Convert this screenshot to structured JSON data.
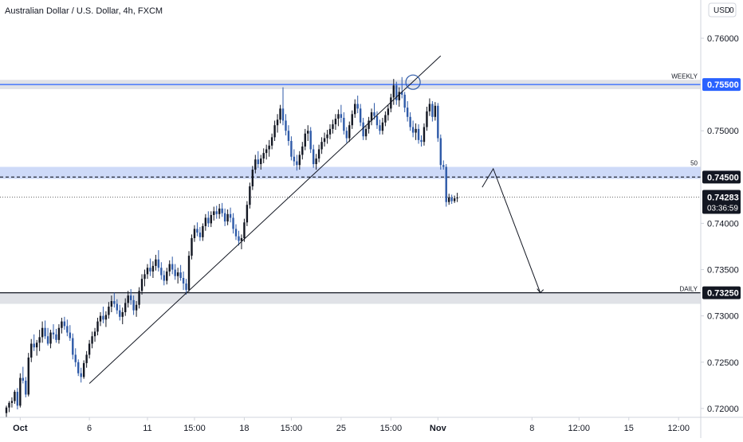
{
  "header": {
    "symbol_title": "Australian Dollar / U.S. Dollar, 4h, FXCM",
    "currency": "USD",
    "currency_suffix": "0"
  },
  "current_price": {
    "value": 0.74283,
    "label": "0.74283",
    "countdown": "03:36:59"
  },
  "colors": {
    "up_candle": "#131722",
    "down_candle": "#2e5aa8",
    "zone_fill": "#c5d4f7",
    "gray_zone_fill": "#dadde3",
    "blue_line": "#2962ff",
    "price_tag_blue": "#2962ff",
    "price_tag_black": "#131722",
    "axis_border": "#d1d4dc",
    "text": "#131722"
  },
  "chart_data": {
    "type": "candlestick",
    "title": "Australian Dollar / U.S. Dollar, 4h, FXCM",
    "ylim": [
      0.7193,
      0.7637
    ],
    "y_ticks": [
      {
        "value": 0.76,
        "label": "0.76000"
      },
      {
        "value": 0.75,
        "label": "0.75000"
      },
      {
        "value": 0.74,
        "label": "0.74000"
      },
      {
        "value": 0.735,
        "label": "0.73500"
      },
      {
        "value": 0.73,
        "label": "0.73000"
      },
      {
        "value": 0.725,
        "label": "0.72500"
      },
      {
        "value": 0.72,
        "label": "0.72000"
      }
    ],
    "x_ticks": [
      {
        "bar": 5,
        "label": "Oct",
        "bold": true
      },
      {
        "bar": 30,
        "label": "6",
        "bold": false
      },
      {
        "bar": 51,
        "label": "11",
        "bold": false
      },
      {
        "bar": 68,
        "label": "15:00",
        "bold": false
      },
      {
        "bar": 86,
        "label": "18",
        "bold": false
      },
      {
        "bar": 103,
        "label": "15:00",
        "bold": false
      },
      {
        "bar": 121,
        "label": "25",
        "bold": false
      },
      {
        "bar": 139,
        "label": "15:00",
        "bold": false
      },
      {
        "bar": 156,
        "label": "Nov",
        "bold": true
      },
      {
        "bar": 190,
        "label": "8",
        "bold": false
      },
      {
        "bar": 207,
        "label": "12:00",
        "bold": false
      },
      {
        "bar": 225,
        "label": "15",
        "bold": false
      },
      {
        "bar": 243,
        "label": "12:00",
        "bold": false
      }
    ],
    "zones": [
      {
        "name": "weekly",
        "from": 0.7555,
        "to": 0.7545,
        "label": "WEEKLY",
        "price_label": "0.75500",
        "line": 0.755,
        "style": "solid-blue"
      },
      {
        "name": "fifty",
        "from": 0.7461,
        "to": 0.7448,
        "label": "50",
        "price_label": "0.74500",
        "line": 0.745,
        "style": "dashed-black"
      },
      {
        "name": "daily",
        "from": 0.7325,
        "to": 0.7313,
        "label": "DAILY",
        "price_label": "0.73250",
        "line": 0.7325,
        "style": "solid-black"
      }
    ],
    "trendline": {
      "from": {
        "bar": 30,
        "price": 0.7227
      },
      "to": {
        "bar": 157,
        "price": 0.7581
      }
    },
    "circle": {
      "bar": 147,
      "price": 0.75525
    },
    "projection": [
      {
        "bar": 172,
        "price": 0.7439
      },
      {
        "bar": 176,
        "price": 0.7459
      },
      {
        "bar": 193,
        "price": 0.7325
      }
    ],
    "candles": [
      [
        0.7195,
        0.7203,
        0.719,
        0.7201
      ],
      [
        0.7201,
        0.7208,
        0.7196,
        0.7206
      ],
      [
        0.7206,
        0.7212,
        0.7201,
        0.7208
      ],
      [
        0.7208,
        0.722,
        0.7205,
        0.7218
      ],
      [
        0.7218,
        0.7222,
        0.7199,
        0.7203
      ],
      [
        0.7203,
        0.7238,
        0.7201,
        0.7233
      ],
      [
        0.7233,
        0.7245,
        0.7227,
        0.723
      ],
      [
        0.723,
        0.7234,
        0.7212,
        0.7215
      ],
      [
        0.7215,
        0.726,
        0.7213,
        0.7255
      ],
      [
        0.7255,
        0.7275,
        0.725,
        0.727
      ],
      [
        0.727,
        0.728,
        0.7262,
        0.7266
      ],
      [
        0.7266,
        0.7274,
        0.7257,
        0.7271
      ],
      [
        0.7271,
        0.7285,
        0.7262,
        0.7277
      ],
      [
        0.7277,
        0.7294,
        0.7271,
        0.7287
      ],
      [
        0.7287,
        0.7295,
        0.7275,
        0.7278
      ],
      [
        0.7278,
        0.7287,
        0.7268,
        0.727
      ],
      [
        0.727,
        0.7285,
        0.7265,
        0.7282
      ],
      [
        0.7282,
        0.7291,
        0.7275,
        0.728
      ],
      [
        0.728,
        0.7286,
        0.7271,
        0.7274
      ],
      [
        0.7274,
        0.7291,
        0.727,
        0.7287
      ],
      [
        0.7287,
        0.7298,
        0.7281,
        0.7294
      ],
      [
        0.7294,
        0.7299,
        0.7285,
        0.7289
      ],
      [
        0.7289,
        0.7296,
        0.7278,
        0.7282
      ],
      [
        0.7282,
        0.729,
        0.7273,
        0.7276
      ],
      [
        0.7276,
        0.7281,
        0.7253,
        0.7258
      ],
      [
        0.7258,
        0.7265,
        0.7245,
        0.725
      ],
      [
        0.725,
        0.7253,
        0.7235,
        0.7238
      ],
      [
        0.7238,
        0.7244,
        0.7228,
        0.7234
      ],
      [
        0.7234,
        0.7252,
        0.7232,
        0.7249
      ],
      [
        0.7249,
        0.7262,
        0.7244,
        0.7258
      ],
      [
        0.7258,
        0.7274,
        0.7254,
        0.727
      ],
      [
        0.727,
        0.7283,
        0.7265,
        0.7278
      ],
      [
        0.7278,
        0.7287,
        0.7272,
        0.7283
      ],
      [
        0.7283,
        0.7298,
        0.7279,
        0.7294
      ],
      [
        0.7294,
        0.7304,
        0.7289,
        0.73
      ],
      [
        0.73,
        0.731,
        0.7292,
        0.7296
      ],
      [
        0.7296,
        0.7305,
        0.7288,
        0.7301
      ],
      [
        0.7301,
        0.7315,
        0.7297,
        0.731
      ],
      [
        0.731,
        0.7322,
        0.7304,
        0.7316
      ],
      [
        0.7316,
        0.7325,
        0.7309,
        0.7313
      ],
      [
        0.7313,
        0.7318,
        0.7302,
        0.7306
      ],
      [
        0.7306,
        0.7312,
        0.7295,
        0.7299
      ],
      [
        0.7299,
        0.7309,
        0.7291,
        0.7304
      ],
      [
        0.7304,
        0.7319,
        0.73,
        0.7314
      ],
      [
        0.7314,
        0.7327,
        0.7309,
        0.7322
      ],
      [
        0.7322,
        0.7329,
        0.7312,
        0.7317
      ],
      [
        0.7317,
        0.7322,
        0.7301,
        0.7306
      ],
      [
        0.7306,
        0.7316,
        0.7299,
        0.7312
      ],
      [
        0.7312,
        0.7331,
        0.7308,
        0.7327
      ],
      [
        0.7327,
        0.7345,
        0.7323,
        0.734
      ],
      [
        0.734,
        0.735,
        0.7332,
        0.7345
      ],
      [
        0.7345,
        0.7356,
        0.734,
        0.7352
      ],
      [
        0.7352,
        0.7362,
        0.7343,
        0.7348
      ],
      [
        0.7348,
        0.7359,
        0.7341,
        0.7354
      ],
      [
        0.7354,
        0.7366,
        0.7349,
        0.7361
      ],
      [
        0.7361,
        0.7371,
        0.7348,
        0.7352
      ],
      [
        0.7352,
        0.7358,
        0.7339,
        0.7344
      ],
      [
        0.7344,
        0.7349,
        0.7333,
        0.7338
      ],
      [
        0.7338,
        0.7352,
        0.7334,
        0.7348
      ],
      [
        0.7348,
        0.736,
        0.7343,
        0.7356
      ],
      [
        0.7356,
        0.7364,
        0.7345,
        0.735
      ],
      [
        0.735,
        0.7356,
        0.7339,
        0.7343
      ],
      [
        0.7343,
        0.7352,
        0.7335,
        0.7347
      ],
      [
        0.7347,
        0.7355,
        0.7338,
        0.7341
      ],
      [
        0.7341,
        0.7348,
        0.7328,
        0.7335
      ],
      [
        0.7335,
        0.734,
        0.7323,
        0.7328
      ],
      [
        0.7328,
        0.737,
        0.7326,
        0.7365
      ],
      [
        0.7365,
        0.7388,
        0.7361,
        0.7384
      ],
      [
        0.7384,
        0.7398,
        0.738,
        0.7394
      ],
      [
        0.7394,
        0.7401,
        0.7386,
        0.739
      ],
      [
        0.739,
        0.7396,
        0.7381,
        0.7385
      ],
      [
        0.7385,
        0.74,
        0.7381,
        0.7397
      ],
      [
        0.7397,
        0.741,
        0.7392,
        0.7406
      ],
      [
        0.7406,
        0.7413,
        0.7396,
        0.74
      ],
      [
        0.74,
        0.7413,
        0.7396,
        0.7409
      ],
      [
        0.7409,
        0.7418,
        0.7403,
        0.7413
      ],
      [
        0.7413,
        0.7419,
        0.7405,
        0.741
      ],
      [
        0.741,
        0.7421,
        0.7405,
        0.7416
      ],
      [
        0.7416,
        0.7422,
        0.7407,
        0.7411
      ],
      [
        0.7411,
        0.7416,
        0.7397,
        0.7402
      ],
      [
        0.7402,
        0.7415,
        0.7398,
        0.741
      ],
      [
        0.741,
        0.7417,
        0.7401,
        0.7406
      ],
      [
        0.7406,
        0.7411,
        0.7389,
        0.7394
      ],
      [
        0.7394,
        0.7399,
        0.7382,
        0.7386
      ],
      [
        0.7386,
        0.7392,
        0.7376,
        0.7381
      ],
      [
        0.7381,
        0.7388,
        0.7372,
        0.7384
      ],
      [
        0.7384,
        0.7405,
        0.738,
        0.7401
      ],
      [
        0.7401,
        0.7424,
        0.7397,
        0.742
      ],
      [
        0.742,
        0.7444,
        0.7416,
        0.744
      ],
      [
        0.744,
        0.7462,
        0.7436,
        0.7458
      ],
      [
        0.7458,
        0.7474,
        0.7454,
        0.7469
      ],
      [
        0.7469,
        0.7478,
        0.746,
        0.7464
      ],
      [
        0.7464,
        0.7474,
        0.7458,
        0.747
      ],
      [
        0.747,
        0.7481,
        0.7465,
        0.7476
      ],
      [
        0.7476,
        0.7485,
        0.7469,
        0.748
      ],
      [
        0.748,
        0.749,
        0.7472,
        0.7484
      ],
      [
        0.7484,
        0.7497,
        0.748,
        0.7493
      ],
      [
        0.7493,
        0.7511,
        0.7489,
        0.7506
      ],
      [
        0.7506,
        0.7518,
        0.7498,
        0.7512
      ],
      [
        0.7512,
        0.7528,
        0.7508,
        0.7524
      ],
      [
        0.7524,
        0.7547,
        0.7506,
        0.7511
      ],
      [
        0.7511,
        0.7518,
        0.7495,
        0.75
      ],
      [
        0.75,
        0.7506,
        0.7484,
        0.7489
      ],
      [
        0.7489,
        0.7494,
        0.7468,
        0.7472
      ],
      [
        0.7472,
        0.748,
        0.7462,
        0.7467
      ],
      [
        0.7467,
        0.7474,
        0.7457,
        0.7463
      ],
      [
        0.7463,
        0.7478,
        0.7458,
        0.7474
      ],
      [
        0.7474,
        0.7488,
        0.7469,
        0.7483
      ],
      [
        0.7483,
        0.7502,
        0.7479,
        0.7497
      ],
      [
        0.7497,
        0.7506,
        0.7489,
        0.75
      ],
      [
        0.75,
        0.7504,
        0.7476,
        0.748
      ],
      [
        0.748,
        0.7485,
        0.746,
        0.7464
      ],
      [
        0.7464,
        0.7475,
        0.7458,
        0.747
      ],
      [
        0.747,
        0.7485,
        0.7466,
        0.748
      ],
      [
        0.748,
        0.7493,
        0.7475,
        0.7488
      ],
      [
        0.7488,
        0.7498,
        0.7483,
        0.7492
      ],
      [
        0.7492,
        0.7501,
        0.7486,
        0.7496
      ],
      [
        0.7496,
        0.7507,
        0.7491,
        0.7502
      ],
      [
        0.7502,
        0.7512,
        0.7497,
        0.7507
      ],
      [
        0.7507,
        0.7518,
        0.7501,
        0.7513
      ],
      [
        0.7513,
        0.7523,
        0.7505,
        0.7518
      ],
      [
        0.7518,
        0.7528,
        0.7509,
        0.7514
      ],
      [
        0.7514,
        0.752,
        0.7496,
        0.75
      ],
      [
        0.75,
        0.7504,
        0.7487,
        0.7492
      ],
      [
        0.7492,
        0.751,
        0.7488,
        0.7506
      ],
      [
        0.7506,
        0.7522,
        0.7502,
        0.7518
      ],
      [
        0.7518,
        0.7534,
        0.7514,
        0.7529
      ],
      [
        0.7529,
        0.7538,
        0.7519,
        0.7524
      ],
      [
        0.7524,
        0.7529,
        0.7505,
        0.7509
      ],
      [
        0.7509,
        0.7514,
        0.749,
        0.7494
      ],
      [
        0.7494,
        0.7506,
        0.749,
        0.7502
      ],
      [
        0.7502,
        0.7515,
        0.7497,
        0.7511
      ],
      [
        0.7511,
        0.7524,
        0.7506,
        0.752
      ],
      [
        0.752,
        0.753,
        0.7512,
        0.7516
      ],
      [
        0.7516,
        0.7521,
        0.7502,
        0.7506
      ],
      [
        0.7506,
        0.7512,
        0.7496,
        0.75
      ],
      [
        0.75,
        0.7514,
        0.7496,
        0.7509
      ],
      [
        0.7509,
        0.7521,
        0.7505,
        0.7517
      ],
      [
        0.7517,
        0.7528,
        0.7511,
        0.7524
      ],
      [
        0.7524,
        0.754,
        0.752,
        0.7536
      ],
      [
        0.7536,
        0.7556,
        0.7528,
        0.7549
      ],
      [
        0.7549,
        0.7553,
        0.7528,
        0.7533
      ],
      [
        0.7533,
        0.7547,
        0.7526,
        0.7542
      ],
      [
        0.7542,
        0.7558,
        0.7535,
        0.7539
      ],
      [
        0.7539,
        0.7542,
        0.752,
        0.7525
      ],
      [
        0.7525,
        0.7532,
        0.751,
        0.7515
      ],
      [
        0.7515,
        0.752,
        0.75,
        0.7504
      ],
      [
        0.7504,
        0.7511,
        0.7493,
        0.7498
      ],
      [
        0.7498,
        0.7508,
        0.749,
        0.7502
      ],
      [
        0.7502,
        0.7507,
        0.7486,
        0.749
      ],
      [
        0.749,
        0.7495,
        0.7483,
        0.7488
      ],
      [
        0.7488,
        0.7508,
        0.7484,
        0.7504
      ],
      [
        0.7504,
        0.7526,
        0.75,
        0.7521
      ],
      [
        0.7521,
        0.7535,
        0.7516,
        0.7529
      ],
      [
        0.7529,
        0.7532,
        0.751,
        0.7515
      ],
      [
        0.7515,
        0.7531,
        0.7511,
        0.7527
      ],
      [
        0.7527,
        0.753,
        0.7488,
        0.7492
      ],
      [
        0.7492,
        0.7496,
        0.7458,
        0.7463
      ],
      [
        0.7463,
        0.7468,
        0.7458,
        0.7461
      ],
      [
        0.7461,
        0.7464,
        0.7418,
        0.7423
      ],
      [
        0.7423,
        0.7432,
        0.742,
        0.7428
      ],
      [
        0.7428,
        0.7431,
        0.7421,
        0.7424
      ],
      [
        0.7424,
        0.743,
        0.7422,
        0.7427
      ],
      [
        0.7427,
        0.7433,
        0.7423,
        0.7428
      ]
    ]
  }
}
